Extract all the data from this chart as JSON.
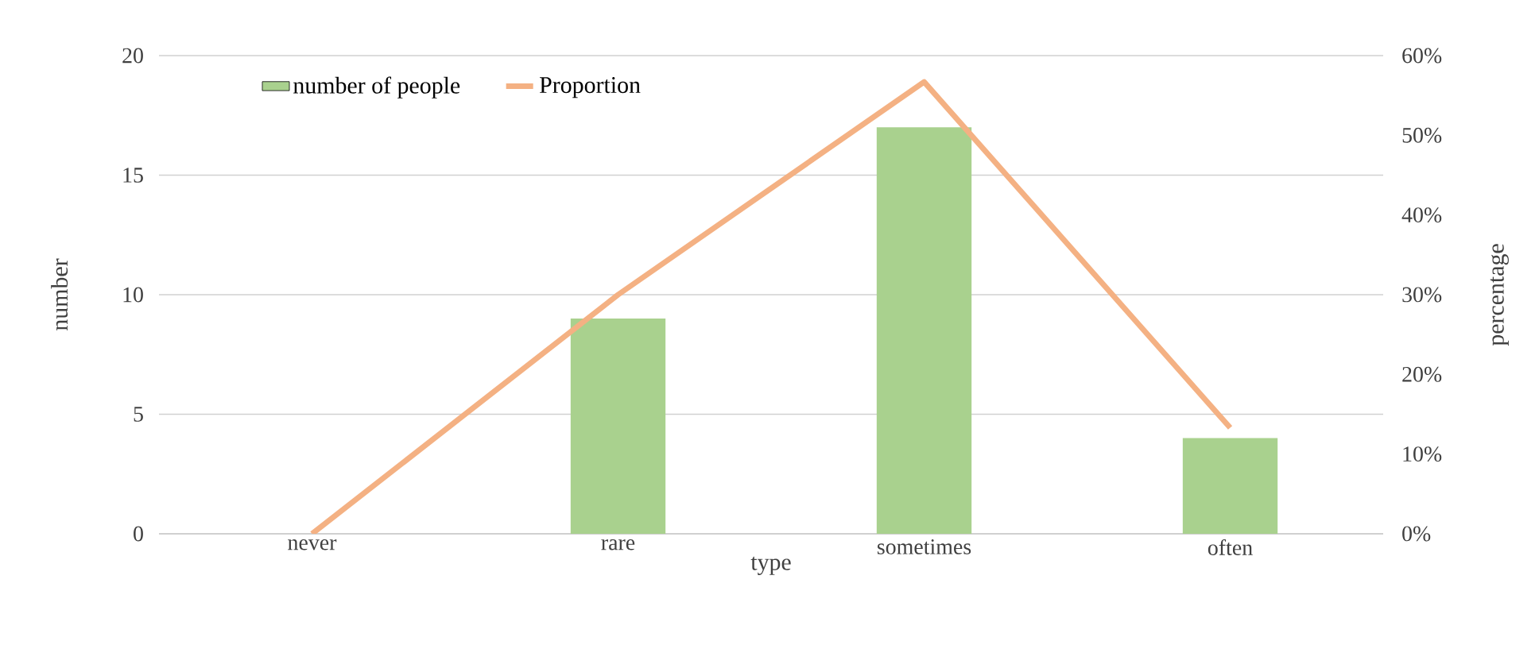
{
  "chart_data": {
    "type": "bar",
    "xlabel": "type",
    "ylabel": "number",
    "y2label": "percentage",
    "categories": [
      "never",
      "rare",
      "sometimes",
      "often"
    ],
    "series": [
      {
        "name": "number of people",
        "color": "#a9d18e",
        "values": [
          0,
          9,
          17,
          4
        ]
      },
      {
        "name": "Proportion",
        "type": "line",
        "axis": "y2",
        "color": "#f4b183",
        "values": [
          0,
          30,
          56.7,
          13.3
        ]
      }
    ],
    "ylim": [
      0,
      20
    ],
    "yticks": [
      0,
      5,
      10,
      15,
      20
    ],
    "y2lim": [
      0,
      60
    ],
    "y2ticks": [
      {
        "value": 0,
        "label": "0%"
      },
      {
        "value": 10,
        "label": "10%"
      },
      {
        "value": 20,
        "label": "20%"
      },
      {
        "value": 30,
        "label": "30%"
      },
      {
        "value": 40,
        "label": "40%"
      },
      {
        "value": 50,
        "label": "50%"
      },
      {
        "value": 60,
        "label": "60%"
      }
    ],
    "grid": "y",
    "legend": "top"
  }
}
